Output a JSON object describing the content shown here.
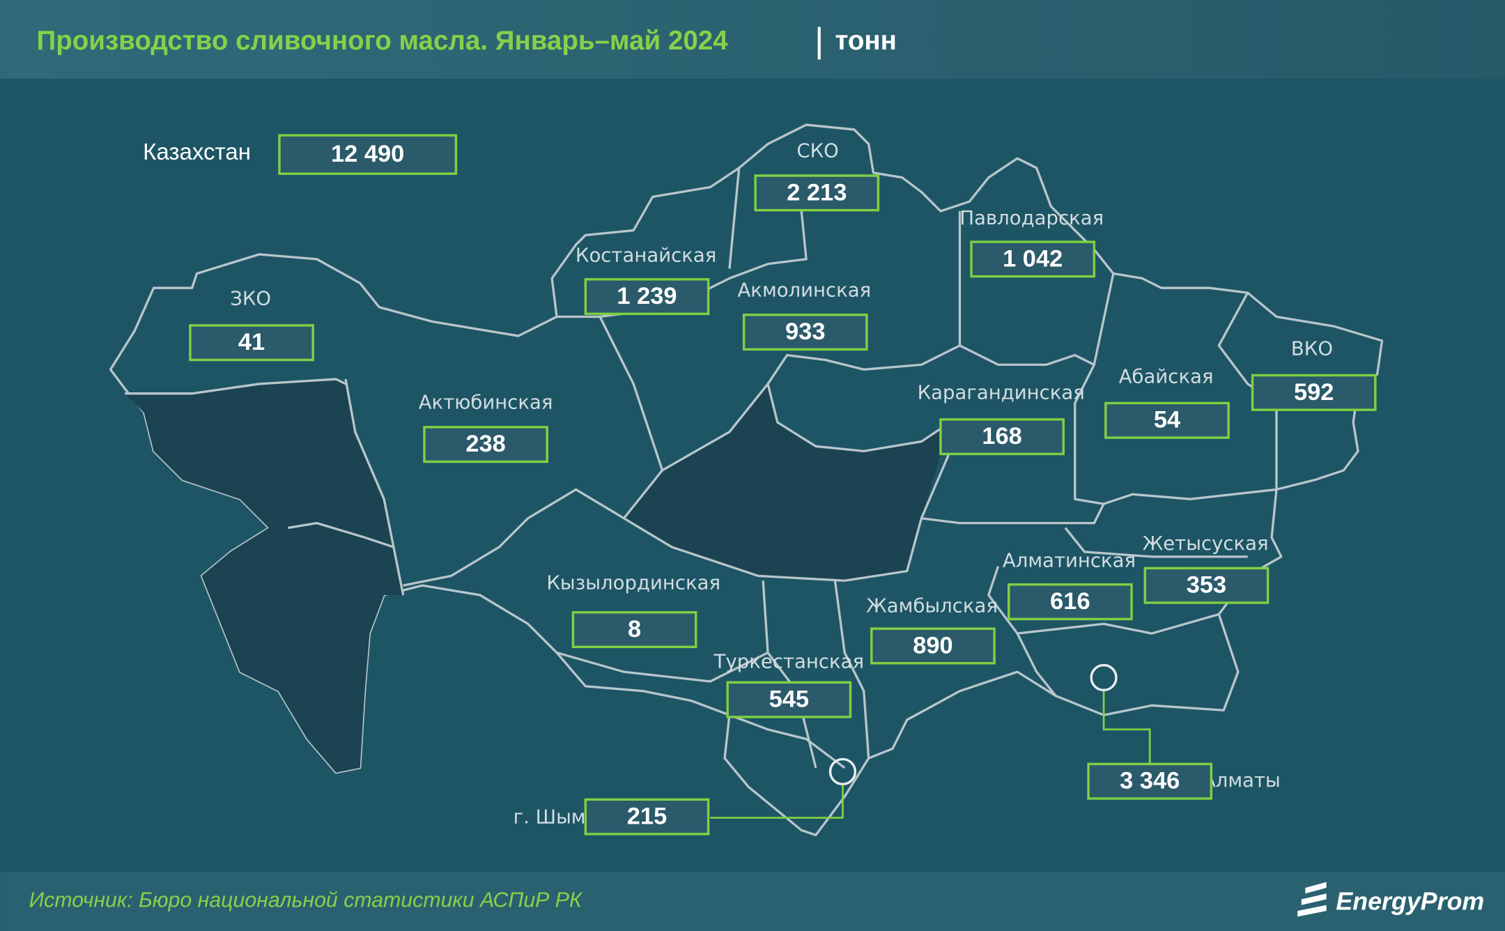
{
  "header": {
    "title": "Производство сливочного масла. Январь–май 2024",
    "unit": "тонн"
  },
  "total": {
    "name": "Казахстан",
    "value": "12 490"
  },
  "regions": [
    {
      "name": "СКО",
      "value": "2 213"
    },
    {
      "name": "Павлодарская",
      "value": "1 042"
    },
    {
      "name": "Костанайская",
      "value": "1 239"
    },
    {
      "name": "Акмолинская",
      "value": "933"
    },
    {
      "name": "ЗКО",
      "value": "41"
    },
    {
      "name": "Актюбинская",
      "value": "238"
    },
    {
      "name": "Карагандинская",
      "value": "168"
    },
    {
      "name": "Абайская",
      "value": "54"
    },
    {
      "name": "ВКО",
      "value": "592"
    },
    {
      "name": "Жетысуская",
      "value": "353"
    },
    {
      "name": "Алматинская",
      "value": "616"
    },
    {
      "name": "Кызылординская",
      "value": "8"
    },
    {
      "name": "Жамбылская",
      "value": "890"
    },
    {
      "name": "Туркестанская",
      "value": "545"
    },
    {
      "name": "г. Шымкент",
      "value": "215"
    },
    {
      "name": "г. Алматы",
      "value": "3 346"
    }
  ],
  "footer": {
    "source": "Источник: Бюро национальной статистики АСПиР РК",
    "logo": "EnergyProm"
  }
}
